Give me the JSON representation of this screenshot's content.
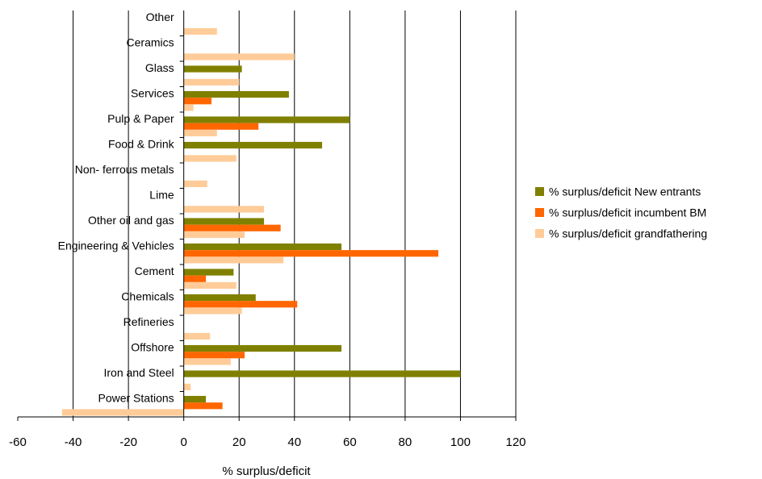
{
  "chart_data": {
    "type": "bar",
    "orientation": "horizontal",
    "categories": [
      "Other",
      "Ceramics",
      "Glass",
      "Services",
      "Pulp & Paper",
      "Food & Drink",
      "Non- ferrous metals",
      "Lime",
      "Other oil and gas",
      "Engineering & Vehicles",
      "Cement",
      "Chemicals",
      "Refineries",
      "Offshore",
      "Iron and Steel",
      "Power Stations"
    ],
    "series": [
      {
        "name": "% surplus/deficit New entrants",
        "color": "#808000",
        "values": [
          null,
          null,
          21,
          38,
          60,
          50,
          null,
          null,
          29,
          57,
          18,
          26,
          null,
          57,
          100,
          8
        ]
      },
      {
        "name": "% surplus/deficit incumbent BM",
        "color": "#FF6600",
        "values": [
          null,
          null,
          null,
          10,
          27,
          null,
          null,
          null,
          35,
          92,
          8,
          41,
          null,
          22,
          null,
          14
        ]
      },
      {
        "name": "% surplus/deficit grandfathering",
        "color": "#FFCC99",
        "values": [
          12,
          40,
          20,
          3.5,
          12,
          19,
          8.5,
          29,
          22,
          36,
          19,
          21,
          9.5,
          17,
          2.5,
          -44
        ]
      }
    ],
    "xlabel": "% surplus/deficit",
    "xlim": [
      -60,
      120
    ],
    "xticks": [
      -60,
      -40,
      -20,
      0,
      20,
      40,
      60,
      80,
      100,
      120
    ],
    "grid": "vertical",
    "legend": "right"
  }
}
